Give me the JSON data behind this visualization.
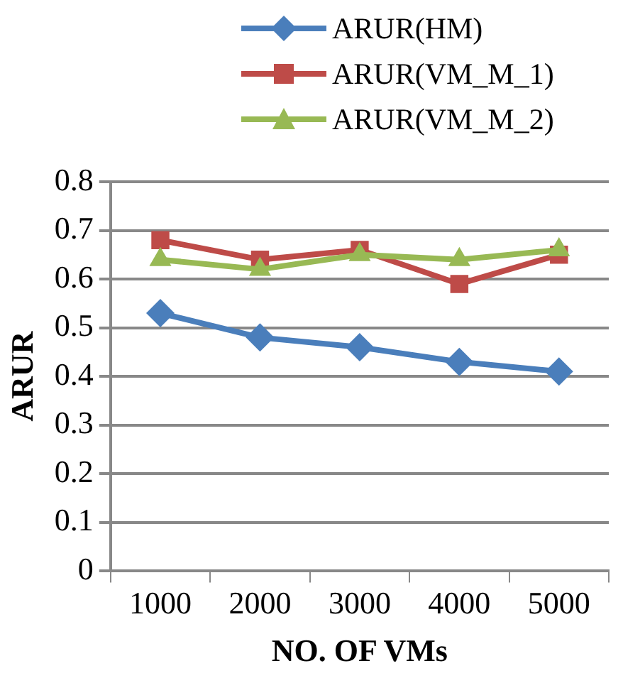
{
  "chart_data": {
    "type": "line",
    "xlabel": "NO. OF VMs",
    "ylabel": "ARUR",
    "categories": [
      "1000",
      "2000",
      "3000",
      "4000",
      "5000"
    ],
    "series": [
      {
        "name": "ARUR(HM)",
        "color": "#4a7ebb",
        "marker": "diamond",
        "values": [
          0.53,
          0.48,
          0.46,
          0.43,
          0.41
        ]
      },
      {
        "name": "ARUR(VM_M_1)",
        "color": "#be4b48",
        "marker": "square",
        "values": [
          0.68,
          0.64,
          0.66,
          0.59,
          0.65
        ]
      },
      {
        "name": "ARUR(VM_M_2)",
        "color": "#98b954",
        "marker": "triangle",
        "values": [
          0.64,
          0.62,
          0.65,
          0.64,
          0.66
        ]
      }
    ],
    "ylim": [
      0,
      0.8
    ],
    "yticks": [
      0,
      0.1,
      0.2,
      0.3,
      0.4,
      0.5,
      0.6,
      0.7,
      0.8
    ],
    "grid": "y",
    "legend": "top right",
    "line_style": "solid"
  }
}
